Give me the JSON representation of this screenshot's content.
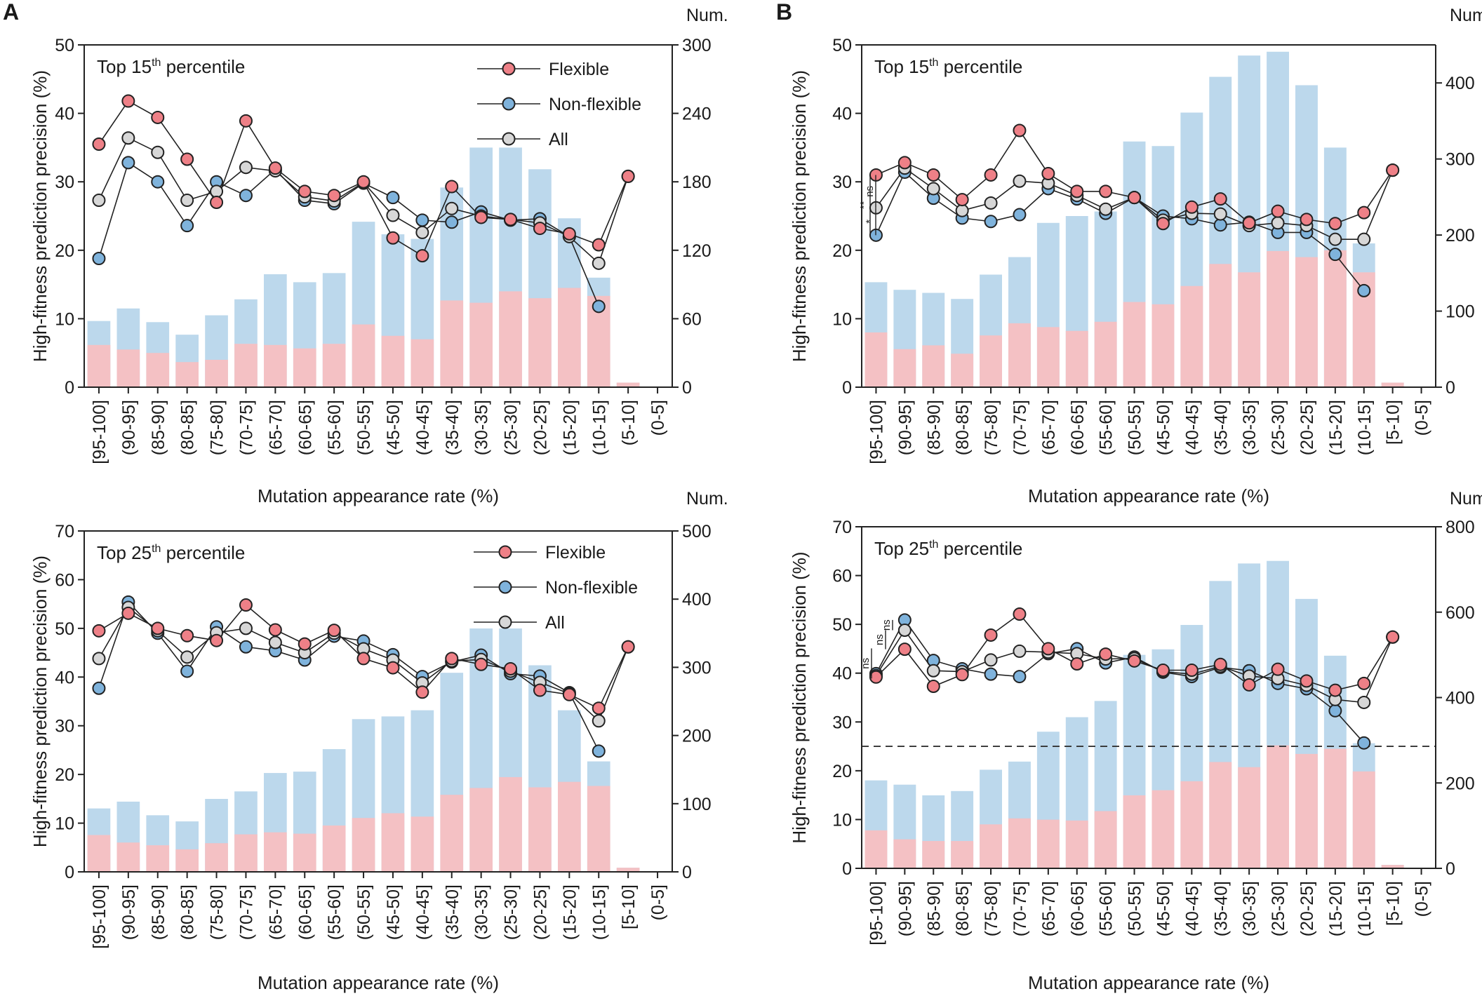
{
  "panel_letters": [
    "A",
    "B"
  ],
  "colors": {
    "flexible": "#ee8087",
    "non_flexible": "#7fb3dc",
    "all": "#d7d7d7",
    "bar_flexible": "#f4c1c4",
    "bar_total": "#bcd8ec"
  },
  "chart_data": [
    {
      "id": "A-top",
      "panel": "A",
      "type": "bar+line",
      "title": "Top 15th percentile",
      "title_prefix": "Top 15",
      "title_sup": "th",
      "title_suffix": " percentile",
      "xlabel": "Mutation appearance rate (%)",
      "ylabel": "High-fitness prediction precision (%)",
      "y2label": "Num.",
      "ylim": [
        0,
        50
      ],
      "yticks": [
        0,
        10,
        20,
        30,
        40,
        50
      ],
      "y2lim": [
        0,
        300
      ],
      "y2ticks": [
        0,
        60,
        120,
        180,
        240,
        300
      ],
      "categories": [
        "[95-100]",
        "(90-95]",
        "(85-90]",
        "(80-85]",
        "(75-80]",
        "(70-75]",
        "(65-70]",
        "(60-65]",
        "(55-60]",
        "(50-55]",
        "(45-50]",
        "(40-45]",
        "(35-40]",
        "(30-35]",
        "(25-30]",
        "(20-25]",
        "(15-20]",
        "(10-15]",
        "(5-10]",
        "(0-5]"
      ],
      "bars": {
        "total_count": [
          58,
          69,
          57,
          46,
          63,
          77,
          99,
          92,
          100,
          145,
          134,
          130,
          175,
          210,
          210,
          191,
          148,
          96,
          4,
          0
        ],
        "flexible_count": [
          37,
          33,
          30,
          22,
          24,
          38,
          37,
          34,
          38,
          55,
          45,
          42,
          76,
          74,
          84,
          78,
          87,
          80,
          4,
          0
        ]
      },
      "series": [
        {
          "name": "Flexible",
          "values": [
            35.5,
            41.8,
            39.4,
            33.3,
            27.0,
            38.9,
            32.0,
            28.6,
            28.0,
            30.0,
            21.8,
            19.2,
            29.3,
            24.8,
            24.5,
            23.2,
            22.4,
            20.8,
            30.8,
            null
          ]
        },
        {
          "name": "Non-flexible",
          "values": [
            18.8,
            32.8,
            30.0,
            23.6,
            30.0,
            28.0,
            31.8,
            27.3,
            26.8,
            29.8,
            27.7,
            24.4,
            24.1,
            25.6,
            24.4,
            24.6,
            22.0,
            11.8,
            null,
            null
          ]
        },
        {
          "name": "All",
          "values": [
            27.3,
            36.4,
            34.3,
            27.3,
            28.6,
            32.1,
            31.6,
            27.8,
            27.2,
            29.9,
            25.1,
            22.6,
            26.1,
            25.0,
            24.5,
            24.0,
            22.0,
            18.1,
            30.8,
            null
          ]
        }
      ],
      "legend": [
        "Flexible",
        "Non-flexible",
        "All"
      ],
      "legend_position": "top-right",
      "annotations": []
    },
    {
      "id": "A-bottom",
      "panel": "A",
      "type": "bar+line",
      "title": "Top 25th percentile",
      "title_prefix": "Top 25",
      "title_sup": "th",
      "title_suffix": " percentile",
      "xlabel": "Mutation appearance rate (%)",
      "ylabel": "High-fitness prediction precision (%)",
      "y2label": "Num.",
      "ylim": [
        0,
        70
      ],
      "yticks": [
        0,
        10,
        20,
        30,
        40,
        50,
        60,
        70
      ],
      "y2lim": [
        0,
        500
      ],
      "y2ticks": [
        0,
        100,
        200,
        300,
        400,
        500
      ],
      "categories": [
        "[95-100]",
        "(90-95]",
        "(85-90]",
        "(80-85]",
        "(75-80]",
        "(70-75]",
        "(65-70]",
        "(60-65]",
        "(55-60]",
        "(50-55]",
        "(45-50]",
        "(40-45]",
        "(35-40]",
        "(30-35]",
        "(25-30]",
        "(20-25]",
        "(15-20]",
        "(10-15]",
        "[5-10]",
        "(0-5]"
      ],
      "bars": {
        "total_count": [
          93,
          103,
          83,
          74,
          107,
          118,
          145,
          147,
          180,
          224,
          228,
          237,
          292,
          357,
          357,
          303,
          237,
          162,
          6,
          0
        ],
        "flexible_count": [
          54,
          43,
          39,
          33,
          42,
          55,
          58,
          56,
          68,
          79,
          86,
          81,
          113,
          123,
          139,
          124,
          132,
          126,
          6,
          0
        ]
      },
      "series": [
        {
          "name": "Flexible",
          "values": [
            49.5,
            53.1,
            50.0,
            48.5,
            47.5,
            54.8,
            49.7,
            46.8,
            49.6,
            43.8,
            41.9,
            36.9,
            43.8,
            42.6,
            41.7,
            37.3,
            36.4,
            33.6,
            46.2,
            null
          ]
        },
        {
          "name": "Non-flexible",
          "values": [
            37.7,
            55.4,
            49.0,
            41.2,
            50.3,
            46.2,
            45.4,
            43.5,
            48.4,
            47.4,
            44.6,
            40.1,
            43.1,
            44.5,
            40.7,
            40.2,
            36.8,
            24.8,
            null,
            null
          ]
        },
        {
          "name": "All",
          "values": [
            43.8,
            54.3,
            49.5,
            44.1,
            49.1,
            50.0,
            47.1,
            45.0,
            49.0,
            45.8,
            43.5,
            38.8,
            43.3,
            43.6,
            41.2,
            38.9,
            36.6,
            31.0,
            46.2,
            null
          ]
        }
      ],
      "legend": [
        "Flexible",
        "Non-flexible",
        "All"
      ],
      "legend_position": "top-right",
      "annotations": []
    },
    {
      "id": "B-top",
      "panel": "B",
      "type": "bar+line",
      "title": "Top 15th percentile",
      "title_prefix": "Top 15",
      "title_sup": "th",
      "title_suffix": " percentile",
      "xlabel": "Mutation appearance rate (%)",
      "ylabel": "High-fitness prediction precision (%)",
      "y2label": "Num.",
      "ylim": [
        0,
        50
      ],
      "yticks": [
        0,
        10,
        20,
        30,
        40,
        50
      ],
      "y2lim": [
        0,
        450
      ],
      "y2ticks": [
        0,
        100,
        200,
        300,
        400
      ],
      "categories": [
        "[95-100]",
        "(90-95]",
        "(85-90]",
        "(80-85]",
        "(75-80]",
        "(70-75]",
        "(65-70]",
        "(60-65]",
        "(55-60]",
        "(50-55]",
        "(45-50]",
        "(40-45]",
        "(35-40]",
        "(30-35]",
        "(25-30]",
        "(20-25]",
        "(15-20]",
        "(10-15]",
        "[5-10]",
        "(0-5]"
      ],
      "bars": {
        "total_count": [
          138,
          128,
          124,
          116,
          148,
          171,
          216,
          225,
          231,
          323,
          317,
          361,
          408,
          436,
          441,
          397,
          315,
          189,
          6,
          0
        ],
        "flexible_count": [
          72,
          50,
          55,
          44,
          68,
          84,
          79,
          74,
          86,
          112,
          109,
          133,
          162,
          151,
          179,
          171,
          180,
          151,
          6,
          0
        ]
      },
      "series": [
        {
          "name": "Flexible",
          "values": [
            31.0,
            32.8,
            31.0,
            27.4,
            31.0,
            37.5,
            31.2,
            28.6,
            28.6,
            27.7,
            23.9,
            26.3,
            27.5,
            24.0,
            25.7,
            24.5,
            23.9,
            25.5,
            31.7,
            null
          ]
        },
        {
          "name": "Non-flexible",
          "values": [
            22.2,
            31.4,
            27.6,
            24.7,
            24.2,
            25.2,
            29.0,
            27.5,
            25.4,
            27.7,
            25.0,
            24.6,
            23.7,
            24.1,
            22.6,
            22.6,
            19.4,
            14.1,
            null,
            null
          ]
        },
        {
          "name": "All",
          "values": [
            26.2,
            32.0,
            29.0,
            25.8,
            26.9,
            30.1,
            29.8,
            28.0,
            26.0,
            27.7,
            24.4,
            25.4,
            25.3,
            23.6,
            24.0,
            23.6,
            21.6,
            21.6,
            31.7,
            null
          ]
        }
      ],
      "legend": [],
      "legend_position": "none",
      "annotations": [
        {
          "type": "significance",
          "pair": [
            "[95-100] Flexible",
            "[95-100] Non-flexible"
          ],
          "text": "**"
        },
        {
          "type": "significance",
          "pair": [
            "[95-100] All",
            "[95-100] Non-flexible"
          ],
          "text": "*"
        },
        {
          "type": "significance",
          "pair": [
            "[95-100] Flexible",
            "[95-100] All"
          ],
          "text": "ns"
        }
      ]
    },
    {
      "id": "B-bottom",
      "panel": "B",
      "type": "bar+line",
      "title": "Top 25th percentile",
      "title_prefix": "Top 25",
      "title_sup": "th",
      "title_suffix": " percentile",
      "xlabel": "Mutation appearance rate (%)",
      "ylabel": "High-fitness prediction precision (%)",
      "y2label": "Num.",
      "ylim": [
        0,
        70
      ],
      "yticks": [
        0,
        10,
        20,
        30,
        40,
        50,
        60,
        70
      ],
      "y2lim": [
        0,
        800
      ],
      "y2ticks": [
        0,
        200,
        400,
        600,
        800
      ],
      "reference_line": 25,
      "categories": [
        "[95-100]",
        "(90-95]",
        "(85-90]",
        "(80-85]",
        "(75-80]",
        "(70-75]",
        "(65-70]",
        "(60-65]",
        "(55-60]",
        "(50-55]",
        "(45-50]",
        "(40-45]",
        "(35-40]",
        "(30-35]",
        "(25-30]",
        "(20-25]",
        "(15-20]",
        "(10-15]",
        "[5-10]",
        "(0-5]"
      ],
      "bars": {
        "total_count": [
          206,
          196,
          171,
          181,
          231,
          250,
          320,
          354,
          392,
          500,
          513,
          570,
          673,
          714,
          720,
          631,
          498,
          293,
          8,
          0
        ],
        "flexible_count": [
          89,
          68,
          64,
          64,
          103,
          117,
          114,
          112,
          134,
          171,
          183,
          204,
          249,
          237,
          288,
          268,
          280,
          227,
          8,
          0
        ]
      },
      "series": [
        {
          "name": "Flexible",
          "values": [
            39.2,
            44.9,
            37.3,
            39.7,
            47.8,
            52.1,
            45.0,
            41.9,
            43.9,
            42.5,
            40.6,
            40.6,
            41.8,
            37.6,
            40.8,
            38.4,
            36.5,
            37.9,
            47.4,
            null
          ]
        },
        {
          "name": "Non-flexible",
          "values": [
            39.9,
            50.9,
            42.6,
            40.9,
            39.8,
            39.3,
            44.0,
            45.0,
            42.1,
            43.3,
            40.2,
            39.3,
            41.2,
            40.5,
            37.9,
            36.8,
            32.3,
            25.7,
            null,
            null
          ]
        },
        {
          "name": "All",
          "values": [
            39.5,
            48.8,
            40.5,
            40.3,
            42.7,
            44.5,
            44.3,
            44.0,
            42.9,
            43.0,
            40.3,
            39.8,
            41.4,
            39.4,
            38.9,
            37.5,
            34.6,
            34.0,
            47.4,
            null
          ]
        }
      ],
      "legend": [],
      "legend_position": "none",
      "annotations": [
        {
          "type": "significance",
          "pair": [
            "[95-100] Flexible",
            "[95-100] Non-flexible"
          ],
          "text": "ns"
        },
        {
          "type": "significance",
          "pair": [
            "(90-95] Flexible",
            "(90-95] All"
          ],
          "text": "ns"
        },
        {
          "type": "significance",
          "pair": [
            "(90-95] All",
            "(90-95] Non-flexible"
          ],
          "text": "ns"
        }
      ]
    }
  ]
}
